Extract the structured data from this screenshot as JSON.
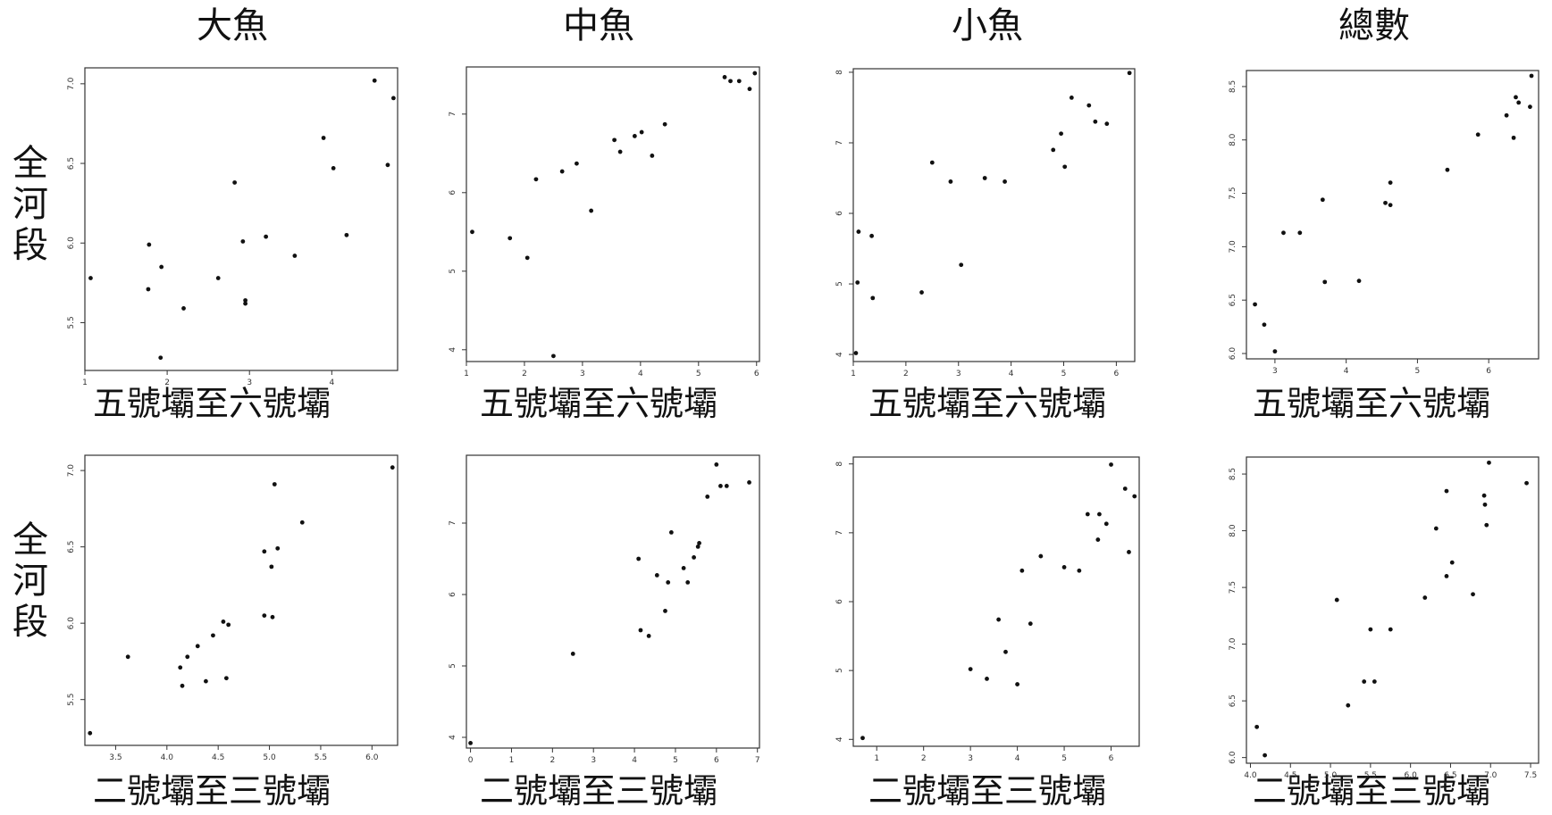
{
  "column_titles": [
    "大魚",
    "中魚",
    "小魚",
    "總數"
  ],
  "row_labels": [
    "全河段",
    "全河段"
  ],
  "chart_data": [
    {
      "type": "scatter",
      "row": 0,
      "col": 0,
      "title": "大魚",
      "xlabel": "五號壩至六號壩",
      "ylabel": "全河段",
      "xlim": [
        1,
        4.8
      ],
      "ylim": [
        5.2,
        7.1
      ],
      "xticks": [
        1,
        2,
        3,
        4
      ],
      "xtick_labels": [
        "1",
        "2",
        "3",
        "4"
      ],
      "yticks": [
        5.5,
        6.0,
        6.5,
        7.0
      ],
      "ytick_labels": [
        "5.5",
        "6.0",
        "6.5",
        "7.0"
      ],
      "x": [
        1.07,
        1.77,
        1.78,
        1.92,
        1.93,
        2.2,
        2.62,
        2.82,
        2.92,
        2.95,
        2.95,
        3.2,
        3.55,
        3.9,
        4.02,
        4.18,
        4.52,
        4.68,
        4.75
      ],
      "y": [
        5.78,
        5.71,
        5.99,
        5.28,
        5.85,
        5.59,
        5.78,
        6.38,
        6.01,
        5.64,
        5.62,
        6.04,
        5.92,
        6.66,
        6.47,
        6.05,
        7.02,
        6.49,
        6.91
      ]
    },
    {
      "type": "scatter",
      "row": 0,
      "col": 1,
      "title": "中魚",
      "xlabel": "五號壩至六號壩",
      "ylabel": "",
      "xlim": [
        1,
        6.05
      ],
      "ylim": [
        3.85,
        7.6
      ],
      "xticks": [
        1,
        2,
        3,
        4,
        5,
        6
      ],
      "xtick_labels": [
        "1",
        "2",
        "3",
        "4",
        "5",
        "6"
      ],
      "yticks": [
        4,
        5,
        6,
        7
      ],
      "ytick_labels": [
        "4",
        "5",
        "6",
        "7"
      ],
      "x": [
        1.1,
        1.75,
        2.05,
        2.2,
        2.5,
        2.65,
        2.9,
        3.15,
        3.55,
        3.65,
        3.9,
        4.02,
        4.2,
        4.42,
        5.45,
        5.55,
        5.7,
        5.88,
        5.97
      ],
      "y": [
        5.5,
        5.42,
        5.17,
        6.17,
        3.92,
        6.27,
        6.37,
        5.77,
        6.67,
        6.52,
        6.72,
        6.77,
        6.47,
        6.87,
        7.47,
        7.42,
        7.42,
        7.32,
        7.52
      ]
    },
    {
      "type": "scatter",
      "row": 0,
      "col": 2,
      "title": "小魚",
      "xlabel": "五號壩至六號壩",
      "ylabel": "",
      "xlim": [
        1,
        6.35
      ],
      "ylim": [
        3.9,
        8.05
      ],
      "xticks": [
        1,
        2,
        3,
        4,
        5,
        6
      ],
      "xtick_labels": [
        "1",
        "2",
        "3",
        "4",
        "5",
        "6"
      ],
      "yticks": [
        4,
        5,
        6,
        7,
        8
      ],
      "ytick_labels": [
        "4",
        "5",
        "6",
        "7",
        "8"
      ],
      "x": [
        1.05,
        1.08,
        1.1,
        1.35,
        1.37,
        2.3,
        2.5,
        2.85,
        3.05,
        3.5,
        3.88,
        4.8,
        4.95,
        5.02,
        5.15,
        5.48,
        5.6,
        5.82,
        6.25
      ],
      "y": [
        4.02,
        5.02,
        5.74,
        5.68,
        4.8,
        4.88,
        6.72,
        6.45,
        5.27,
        6.5,
        6.45,
        6.9,
        7.13,
        6.66,
        7.64,
        7.53,
        7.3,
        7.27,
        7.99
      ]
    },
    {
      "type": "scatter",
      "row": 0,
      "col": 3,
      "title": "總數",
      "xlabel": "五號壩至六號壩",
      "ylabel": "",
      "xlim": [
        2.6,
        6.7
      ],
      "ylim": [
        5.95,
        8.65
      ],
      "xticks": [
        3,
        4,
        5,
        6
      ],
      "xtick_labels": [
        "3",
        "4",
        "5",
        "6"
      ],
      "yticks": [
        6.0,
        6.5,
        7.0,
        7.5,
        8.0,
        8.5
      ],
      "ytick_labels": [
        "6.0",
        "6.5",
        "7.0",
        "7.5",
        "8.0",
        "8.5"
      ],
      "x": [
        2.72,
        2.85,
        3.0,
        3.12,
        3.35,
        3.67,
        3.7,
        4.18,
        4.55,
        4.62,
        4.62,
        5.42,
        5.85,
        6.25,
        6.35,
        6.38,
        6.42,
        6.58,
        6.6
      ],
      "y": [
        6.46,
        6.27,
        6.02,
        7.13,
        7.13,
        7.44,
        6.67,
        6.68,
        7.41,
        7.6,
        7.39,
        7.72,
        8.05,
        8.23,
        8.02,
        8.4,
        8.35,
        8.31,
        8.6
      ]
    },
    {
      "type": "scatter",
      "row": 1,
      "col": 0,
      "title": "",
      "xlabel": "二號壩至三號壩",
      "ylabel": "全河段",
      "xlim": [
        3.2,
        6.25
      ],
      "ylim": [
        5.2,
        7.1
      ],
      "xticks": [
        3.5,
        4.0,
        4.5,
        5.0,
        5.5,
        6.0
      ],
      "xtick_labels": [
        "3.5",
        "4.0",
        "4.5",
        "5.0",
        "5.5",
        "6.0"
      ],
      "yticks": [
        5.5,
        6.0,
        6.5,
        7.0
      ],
      "ytick_labels": [
        "5.5",
        "6.0",
        "6.5",
        "7.0"
      ],
      "x": [
        3.25,
        3.62,
        4.13,
        4.15,
        4.2,
        4.3,
        4.38,
        4.45,
        4.55,
        4.6,
        4.58,
        4.95,
        4.95,
        5.02,
        5.03,
        5.08,
        5.32,
        6.2,
        5.05
      ],
      "y": [
        5.28,
        5.78,
        5.71,
        5.59,
        5.78,
        5.85,
        5.62,
        5.92,
        6.01,
        5.99,
        5.64,
        6.05,
        6.47,
        6.37,
        6.04,
        6.49,
        6.66,
        7.02,
        6.91
      ]
    },
    {
      "type": "scatter",
      "row": 1,
      "col": 1,
      "title": "",
      "xlabel": "二號壩至三號壩",
      "ylabel": "",
      "xlim": [
        -0.1,
        7.05
      ],
      "ylim": [
        3.85,
        7.95
      ],
      "xticks": [
        0,
        1,
        2,
        3,
        4,
        5,
        6,
        7
      ],
      "xtick_labels": [
        "0",
        "1",
        "2",
        "3",
        "4",
        "5",
        "6",
        "7"
      ],
      "yticks": [
        4,
        5,
        6,
        7
      ],
      "ytick_labels": [
        "4",
        "5",
        "6",
        "7"
      ],
      "x": [
        0,
        2.5,
        4.1,
        4.15,
        4.35,
        4.55,
        4.75,
        4.82,
        4.9,
        5.2,
        5.3,
        5.45,
        5.55,
        5.58,
        5.78,
        6,
        6.1,
        6.25,
        6.8
      ],
      "y": [
        3.92,
        5.17,
        6.5,
        5.5,
        5.42,
        6.27,
        5.77,
        6.17,
        6.87,
        6.37,
        6.17,
        6.52,
        6.67,
        6.72,
        7.37,
        7.82,
        7.52,
        7.52,
        7.57
      ]
    },
    {
      "type": "scatter",
      "row": 1,
      "col": 2,
      "title": "",
      "xlabel": "二號壩至三號壩",
      "ylabel": "",
      "xlim": [
        0.5,
        6.6
      ],
      "ylim": [
        3.9,
        8.1
      ],
      "xticks": [
        1,
        2,
        3,
        4,
        5,
        6
      ],
      "xtick_labels": [
        "1",
        "2",
        "3",
        "4",
        "5",
        "6"
      ],
      "yticks": [
        4,
        5,
        6,
        7,
        8
      ],
      "ytick_labels": [
        "4",
        "5",
        "6",
        "7",
        "8"
      ],
      "x": [
        0.7,
        3.0,
        3.35,
        3.6,
        3.75,
        4.0,
        4.1,
        4.28,
        4.5,
        5.0,
        5.32,
        5.5,
        5.72,
        5.75,
        5.9,
        6.0,
        6.3,
        6.38,
        6.5
      ],
      "y": [
        4.02,
        5.02,
        4.88,
        5.74,
        5.27,
        4.8,
        6.45,
        5.68,
        6.66,
        6.5,
        6.45,
        7.27,
        6.9,
        7.27,
        7.13,
        7.99,
        7.64,
        6.72,
        7.53
      ]
    },
    {
      "type": "scatter",
      "row": 1,
      "col": 3,
      "title": "",
      "xlabel": "二號壩至三號壩",
      "ylabel": "",
      "xlim": [
        3.95,
        7.6
      ],
      "ylim": [
        5.95,
        8.65
      ],
      "xticks": [
        4.0,
        4.5,
        5.0,
        5.5,
        6.0,
        6.5,
        7.0,
        7.5
      ],
      "xtick_labels": [
        "4.0",
        "4.5",
        "5.0",
        "5.5",
        "6.0",
        "6.5",
        "7.0",
        "7.5"
      ],
      "yticks": [
        6.0,
        6.5,
        7.0,
        7.5,
        8.0,
        8.5
      ],
      "ytick_labels": [
        "6.0",
        "6.5",
        "7.0",
        "7.5",
        "8.0",
        "8.5"
      ],
      "x": [
        4.08,
        4.18,
        5.08,
        5.22,
        5.42,
        5.5,
        5.55,
        5.75,
        6.18,
        6.32,
        6.45,
        6.45,
        6.52,
        6.78,
        6.92,
        6.93,
        6.95,
        6.98,
        7.45
      ],
      "y": [
        6.27,
        6.02,
        7.39,
        6.46,
        6.67,
        7.13,
        6.67,
        7.13,
        7.41,
        8.02,
        8.35,
        7.6,
        7.72,
        7.44,
        8.31,
        8.23,
        8.05,
        8.6,
        8.42
      ]
    }
  ]
}
